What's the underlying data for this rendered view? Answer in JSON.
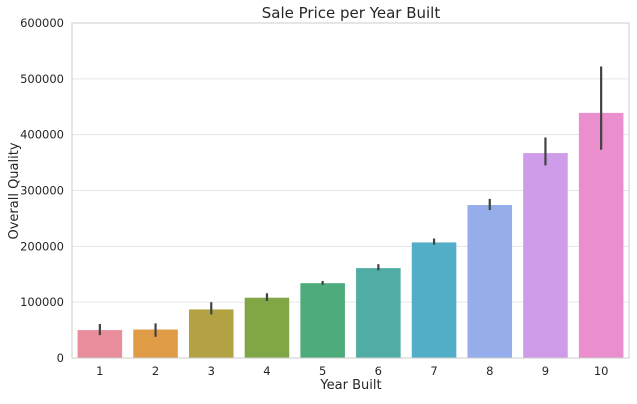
{
  "chart_data": {
    "type": "bar",
    "title": "Sale Price per Year Built",
    "xlabel": "Year Built",
    "ylabel": "Overall Quality",
    "categories": [
      "1",
      "2",
      "3",
      "4",
      "5",
      "6",
      "7",
      "8",
      "9",
      "10"
    ],
    "values": [
      50000,
      51000,
      87000,
      108000,
      134000,
      161000,
      207000,
      274000,
      367000,
      439000
    ],
    "error_low": [
      41000,
      38000,
      78000,
      102000,
      131000,
      157000,
      203000,
      265000,
      345000,
      373000
    ],
    "error_high": [
      61000,
      62000,
      100000,
      116000,
      138000,
      168000,
      214000,
      285000,
      395000,
      522000
    ],
    "ylim": [
      0,
      600000
    ],
    "yticks": [
      0,
      100000,
      200000,
      300000,
      400000,
      500000,
      600000
    ],
    "ytick_labels": [
      "0",
      "100000",
      "200000",
      "300000",
      "400000",
      "500000",
      "600000"
    ],
    "grid": true,
    "colors": [
      "#e98d9c",
      "#e09b47",
      "#b2a244",
      "#80a645",
      "#4eac7c",
      "#4fada5",
      "#52aec7",
      "#95adea",
      "#cf9ce9",
      "#ea8ecd"
    ],
    "error_color": "#424242",
    "grid_color": "#e6e6e6",
    "axis_color": "#cccccc"
  }
}
